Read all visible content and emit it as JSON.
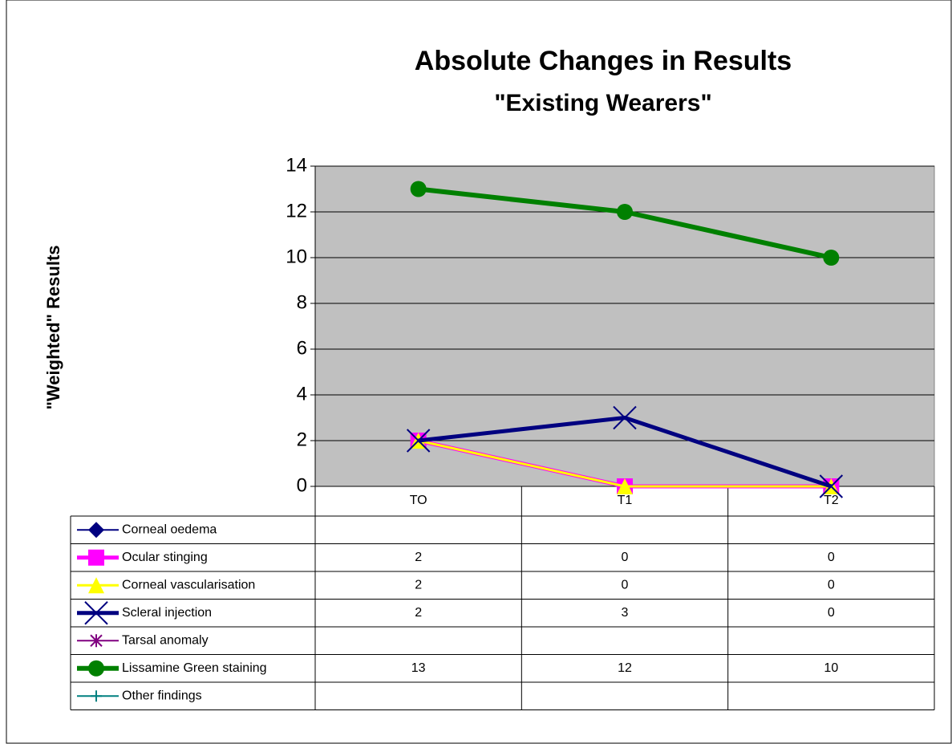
{
  "chart_data": {
    "type": "line",
    "title": "Absolute Changes in Results",
    "subtitle": "\"Existing Wearers\"",
    "y_label": "\"Weighted\" Results",
    "categories": [
      "TO",
      "T1",
      "T2"
    ],
    "series": [
      {
        "name": "Corneal oedema",
        "color": "#000080",
        "marker": "diamond",
        "values": [
          null,
          null,
          null
        ]
      },
      {
        "name": "Ocular stinging",
        "color": "#ff00ff",
        "marker": "square",
        "values": [
          2,
          0,
          0
        ]
      },
      {
        "name": "Corneal vascularisation",
        "color": "#ffff00",
        "marker": "triangle",
        "values": [
          2,
          0,
          0
        ]
      },
      {
        "name": "Scleral injection",
        "color": "#000080",
        "marker": "x",
        "values": [
          2,
          3,
          0
        ]
      },
      {
        "name": "Tarsal anomaly",
        "color": "#800080",
        "marker": "star",
        "values": [
          null,
          null,
          null
        ]
      },
      {
        "name": "Lissamine Green staining",
        "color": "#008000",
        "marker": "circle",
        "values": [
          13,
          12,
          10
        ]
      },
      {
        "name": "Other findings",
        "color": "#008080",
        "marker": "plus",
        "values": [
          null,
          null,
          null
        ]
      }
    ],
    "ylim": [
      0,
      14
    ],
    "yticks": [
      0,
      2,
      4,
      6,
      8,
      10,
      12,
      14
    ],
    "grid": true,
    "data_table": true
  }
}
